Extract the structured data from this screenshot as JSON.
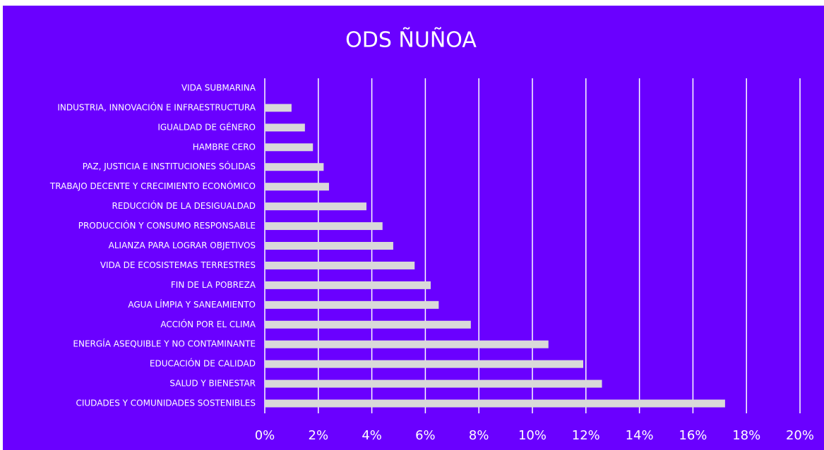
{
  "chart_data": {
    "type": "barh",
    "title": "ODS ÑUÑOA",
    "categories": [
      "VIDA SUBMARINA",
      "INDUSTRIA, INNOVACIÓN E INFRAESTRUCTURA",
      "IGUALDAD DE GÉNERO",
      "HAMBRE CERO",
      "PAZ, JUSTICIA E INSTITUCIONES SÓLIDAS",
      "TRABAJO DECENTE Y CRECIMIENTO ECONÓMICO",
      "REDUCCIÓN DE LA DESIGUALDAD",
      "PRODUCCIÓN Y CONSUMO RESPONSABLE",
      "ALIANZA PARA LOGRAR OBJETIVOS",
      "VIDA DE ECOSISTEMAS TERRESTRES",
      "FIN DE LA POBREZA",
      "AGUA LÍMPIA Y SANEAMIENTO",
      "ACCIÓN POR EL CLIMA",
      "ENERGÍA ASEQUIBLE Y NO CONTAMINANTE",
      "EDUCACIÓN DE CALIDAD",
      "SALUD Y BIENESTAR",
      "CIUDADES Y COMUNIDADES SOSTENIBLES"
    ],
    "values": [
      0,
      1.0,
      1.5,
      1.8,
      2.2,
      2.4,
      3.8,
      4.4,
      4.8,
      5.6,
      6.2,
      6.5,
      7.7,
      10.6,
      11.9,
      12.6,
      17.2
    ],
    "color": "#d9d9d9",
    "background": "#6a00ff",
    "xlim": [
      0,
      20
    ],
    "xticks": [
      {
        "value": 0,
        "label": "0%"
      },
      {
        "value": 2,
        "label": "2%"
      },
      {
        "value": 4,
        "label": "4%"
      },
      {
        "value": 6,
        "label": "6%"
      },
      {
        "value": 8,
        "label": "8%"
      },
      {
        "value": 10,
        "label": "10%"
      },
      {
        "value": 12,
        "label": "12%"
      },
      {
        "value": 14,
        "label": "14%"
      },
      {
        "value": 16,
        "label": "16%"
      },
      {
        "value": 18,
        "label": "18%"
      },
      {
        "value": 20,
        "label": "20%"
      }
    ],
    "grid": true
  }
}
